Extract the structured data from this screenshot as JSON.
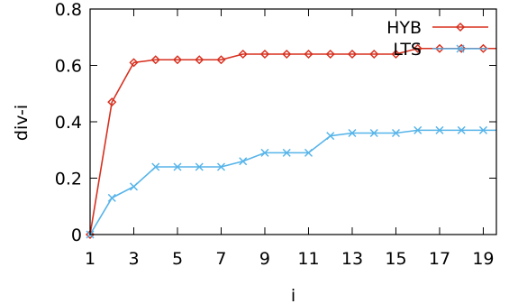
{
  "chart_data": {
    "type": "line",
    "xlabel": "i",
    "ylabel": "div-i",
    "xlim": [
      1,
      19.6
    ],
    "ylim": [
      0,
      0.8
    ],
    "xticks": [
      1,
      3,
      5,
      7,
      9,
      11,
      13,
      15,
      17,
      19
    ],
    "yticks": [
      0,
      0.2,
      0.4,
      0.6,
      0.8
    ],
    "ytick_labels": [
      "0",
      "0.2",
      "0.4",
      "0.6",
      "0.8"
    ],
    "legend_position": "top-right",
    "x": [
      1,
      2,
      3,
      4,
      5,
      6,
      7,
      8,
      9,
      10,
      11,
      12,
      13,
      14,
      15,
      16,
      17,
      18,
      19,
      20
    ],
    "series": [
      {
        "name": "HYB",
        "color": "#d7301f",
        "marker": "diamond",
        "values": [
          0,
          0.47,
          0.61,
          0.62,
          0.62,
          0.62,
          0.62,
          0.64,
          0.64,
          0.64,
          0.64,
          0.64,
          0.64,
          0.64,
          0.64,
          0.66,
          0.66,
          0.66,
          0.66,
          0.66
        ]
      },
      {
        "name": "LTS",
        "color": "#56b4e9",
        "marker": "x",
        "values": [
          0,
          0.13,
          0.17,
          0.24,
          0.24,
          0.24,
          0.24,
          0.26,
          0.29,
          0.29,
          0.29,
          0.35,
          0.36,
          0.36,
          0.36,
          0.37,
          0.37,
          0.37,
          0.37,
          0.37
        ]
      }
    ]
  }
}
